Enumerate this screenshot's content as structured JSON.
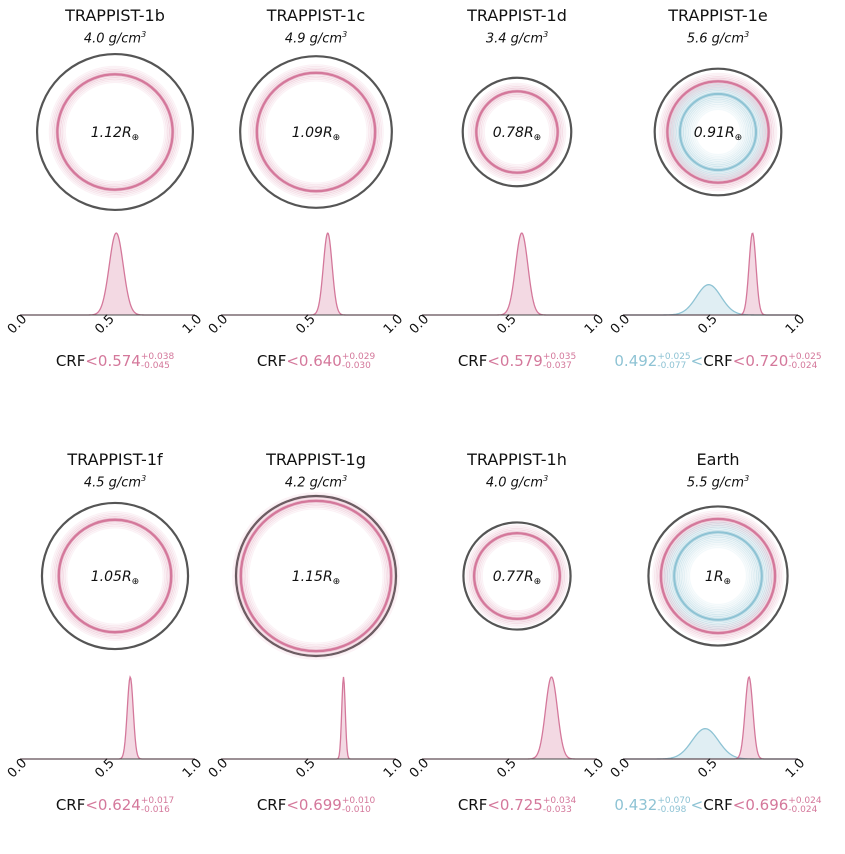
{
  "colors": {
    "core": "#d4789b",
    "mantle": "#8ec3d4",
    "outline": "#555555",
    "text": "#111111"
  },
  "density_unit": "g/cm",
  "density_exp": "3",
  "radius_unit": "R",
  "earth_symbol": "⊕",
  "constraint_label": "CRF",
  "chart_data": [
    {
      "type": "density",
      "name": "TRAPPIST-1b",
      "density": "4.0",
      "radius": "1.12",
      "core_radius_frac": 0.74,
      "mantle_radius_frac": null,
      "xlim": [
        0,
        1
      ],
      "xticks": [
        "0.0",
        "0.5",
        "1.0"
      ],
      "series": [
        {
          "name": "CRF",
          "peak": 0.55,
          "width": 0.04
        }
      ],
      "crf_value": "0.574",
      "crf_plus": "+0.038",
      "crf_minus": "-0.045",
      "mantle_value": null,
      "mantle_plus": null,
      "mantle_minus": null
    },
    {
      "type": "density",
      "name": "TRAPPIST-1c",
      "density": "4.9",
      "radius": "1.09",
      "core_radius_frac": 0.78,
      "mantle_radius_frac": null,
      "xlim": [
        0,
        1
      ],
      "xticks": [
        "0.0",
        "0.5",
        "1.0"
      ],
      "series": [
        {
          "name": "CRF",
          "peak": 0.61,
          "width": 0.025
        }
      ],
      "crf_value": "0.640",
      "crf_plus": "+0.029",
      "crf_minus": "-0.030",
      "mantle_value": null,
      "mantle_plus": null,
      "mantle_minus": null
    },
    {
      "type": "density",
      "name": "TRAPPIST-1d",
      "density": "3.4",
      "radius": "0.78",
      "core_radius_frac": 0.75,
      "mantle_radius_frac": null,
      "xlim": [
        0,
        1
      ],
      "xticks": [
        "0.0",
        "0.5",
        "1.0"
      ],
      "series": [
        {
          "name": "CRF",
          "peak": 0.57,
          "width": 0.035
        }
      ],
      "crf_value": "0.579",
      "crf_plus": "+0.035",
      "crf_minus": "-0.037",
      "mantle_value": null,
      "mantle_plus": null,
      "mantle_minus": null
    },
    {
      "type": "density",
      "name": "TRAPPIST-1e",
      "density": "5.6",
      "radius": "0.91",
      "core_radius_frac": 0.8,
      "mantle_radius_frac": 0.6,
      "xlim": [
        0,
        1
      ],
      "xticks": [
        "0.0",
        "0.5",
        "1.0"
      ],
      "series": [
        {
          "name": "mantle",
          "peak": 0.49,
          "width": 0.07,
          "height": 0.37
        },
        {
          "name": "CRF",
          "peak": 0.74,
          "width": 0.02,
          "height": 1.0
        }
      ],
      "crf_value": "0.720",
      "crf_plus": "+0.025",
      "crf_minus": "-0.024",
      "mantle_value": "0.492",
      "mantle_plus": "+0.025",
      "mantle_minus": "-0.077"
    },
    {
      "type": "density",
      "name": "TRAPPIST-1f",
      "density": "4.5",
      "radius": "1.05",
      "core_radius_frac": 0.77,
      "mantle_radius_frac": null,
      "xlim": [
        0,
        1
      ],
      "xticks": [
        "0.0",
        "0.5",
        "1.0"
      ],
      "series": [
        {
          "name": "CRF",
          "peak": 0.63,
          "width": 0.017
        }
      ],
      "crf_value": "0.624",
      "crf_plus": "+0.017",
      "crf_minus": "-0.016",
      "mantle_value": null,
      "mantle_plus": null,
      "mantle_minus": null
    },
    {
      "type": "density",
      "name": "TRAPPIST-1g",
      "density": "4.2",
      "radius": "1.15",
      "core_radius_frac": 0.94,
      "mantle_radius_frac": null,
      "xlim": [
        0,
        1
      ],
      "xticks": [
        "0.0",
        "0.5",
        "1.0"
      ],
      "series": [
        {
          "name": "CRF",
          "peak": 0.7,
          "width": 0.01
        }
      ],
      "crf_value": "0.699",
      "crf_plus": "+0.010",
      "crf_minus": "-0.010",
      "mantle_value": null,
      "mantle_plus": null,
      "mantle_minus": null
    },
    {
      "type": "density",
      "name": "TRAPPIST-1h",
      "density": "4.0",
      "radius": "0.77",
      "core_radius_frac": 0.8,
      "mantle_radius_frac": null,
      "xlim": [
        0,
        1
      ],
      "xticks": [
        "0.0",
        "0.5",
        "1.0"
      ],
      "series": [
        {
          "name": "CRF",
          "peak": 0.74,
          "width": 0.034
        }
      ],
      "crf_value": "0.725",
      "crf_plus": "+0.034",
      "crf_minus": "-0.033",
      "mantle_value": null,
      "mantle_plus": null,
      "mantle_minus": null
    },
    {
      "type": "density",
      "name": "Earth",
      "density": "5.5",
      "radius": "1",
      "core_radius_frac": 0.82,
      "mantle_radius_frac": 0.63,
      "xlim": [
        0,
        1
      ],
      "xticks": [
        "0.0",
        "0.5",
        "1.0"
      ],
      "series": [
        {
          "name": "mantle",
          "peak": 0.47,
          "width": 0.075,
          "height": 0.37
        },
        {
          "name": "CRF",
          "peak": 0.72,
          "width": 0.022,
          "height": 1.0
        }
      ],
      "crf_value": "0.696",
      "crf_plus": "+0.024",
      "crf_minus": "-0.024",
      "mantle_value": "0.432",
      "mantle_plus": "+0.070",
      "mantle_minus": "-0.098"
    }
  ]
}
